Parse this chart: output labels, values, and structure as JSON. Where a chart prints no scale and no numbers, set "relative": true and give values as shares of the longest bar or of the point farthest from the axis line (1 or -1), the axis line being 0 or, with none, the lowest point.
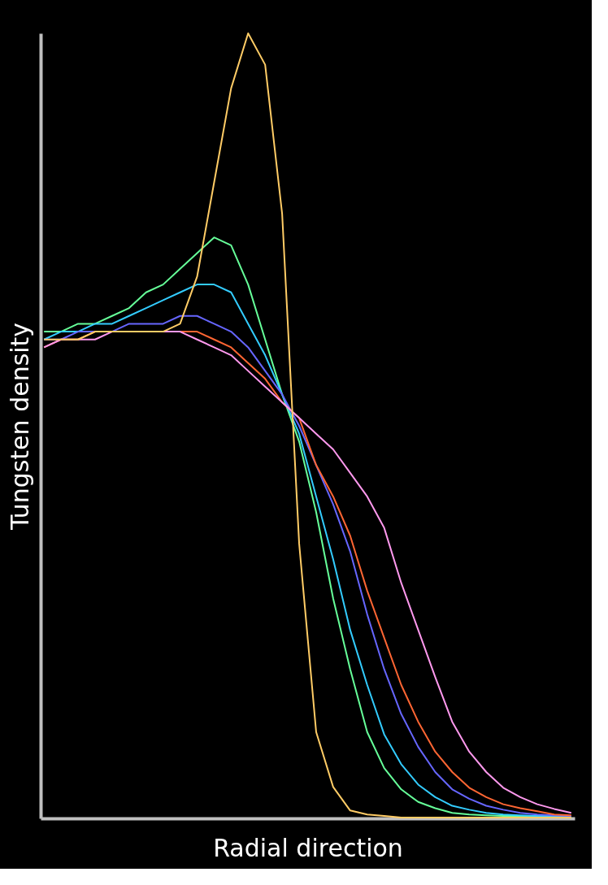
{
  "chart_data": {
    "type": "line",
    "relative": true,
    "xlabel": "Radial direction",
    "ylabel": "Tungsten density",
    "grid": false,
    "categories": [
      null,
      null,
      null,
      null,
      null,
      null,
      null,
      null,
      null,
      null,
      null,
      null,
      null,
      null,
      null,
      null,
      null,
      null,
      null,
      null,
      null,
      null,
      null,
      null,
      null,
      null,
      null,
      null,
      null,
      null,
      null,
      null
    ],
    "series": [
      {
        "color": "#66ff99",
        "values": [
          0.62,
          0.62,
          0.63,
          0.63,
          0.64,
          0.65,
          0.67,
          0.68,
          0.7,
          0.72,
          0.74,
          0.73,
          0.68,
          0.61,
          0.54,
          0.48,
          0.39,
          0.28,
          0.19,
          0.11,
          0.064,
          0.037,
          0.021,
          0.013,
          0.007,
          0.005,
          0.004,
          0.003,
          0.003,
          0.002,
          null,
          null
        ]
      },
      {
        "color": "#33ccff",
        "values": [
          0.61,
          0.62,
          0.62,
          0.63,
          0.63,
          0.64,
          0.65,
          0.66,
          0.67,
          0.68,
          0.68,
          0.67,
          0.63,
          0.59,
          0.54,
          0.49,
          0.41,
          0.33,
          0.24,
          0.17,
          0.107,
          0.069,
          0.043,
          0.027,
          0.016,
          0.011,
          0.007,
          0.005,
          0.004,
          0.003,
          0.003,
          0.002
        ]
      },
      {
        "color": "#6666ff",
        "values": [
          0.61,
          0.61,
          0.62,
          0.62,
          0.62,
          0.63,
          0.63,
          0.63,
          0.64,
          0.64,
          0.63,
          0.62,
          0.6,
          0.57,
          0.54,
          0.5,
          0.45,
          0.4,
          0.34,
          0.26,
          0.19,
          0.133,
          0.091,
          0.059,
          0.037,
          0.025,
          0.016,
          0.011,
          0.007,
          0.005,
          0.004,
          0.003
        ]
      },
      {
        "color": "#ff6633",
        "values": [
          0.6,
          0.61,
          0.61,
          0.62,
          0.62,
          0.62,
          0.62,
          0.62,
          0.62,
          0.62,
          0.61,
          0.6,
          0.58,
          0.56,
          0.53,
          0.51,
          0.45,
          0.41,
          0.36,
          0.29,
          0.23,
          0.17,
          0.123,
          0.085,
          0.059,
          0.039,
          0.027,
          0.018,
          0.013,
          0.009,
          0.005,
          0.004
        ]
      },
      {
        "color": "#ff99ee",
        "values": [
          0.6,
          0.61,
          0.61,
          0.61,
          0.62,
          0.62,
          0.62,
          0.62,
          0.62,
          0.61,
          0.6,
          0.59,
          0.57,
          0.55,
          0.53,
          0.51,
          0.49,
          0.47,
          0.44,
          0.41,
          0.37,
          0.3,
          0.24,
          0.18,
          0.123,
          0.085,
          0.059,
          0.039,
          0.027,
          0.018,
          0.012,
          0.007
        ]
      },
      {
        "color": "#ffcc66",
        "values": [
          0.61,
          0.61,
          0.61,
          0.62,
          0.62,
          0.62,
          0.62,
          0.62,
          0.63,
          0.69,
          0.81,
          0.93,
          1.0,
          0.96,
          0.77,
          0.35,
          0.11,
          0.04,
          0.01,
          0.005,
          0.003,
          0.001,
          0.001,
          0.001,
          0.001,
          0.001,
          0.001,
          0.001,
          0.001,
          0.001,
          0.001,
          0.001
        ]
      }
    ]
  }
}
